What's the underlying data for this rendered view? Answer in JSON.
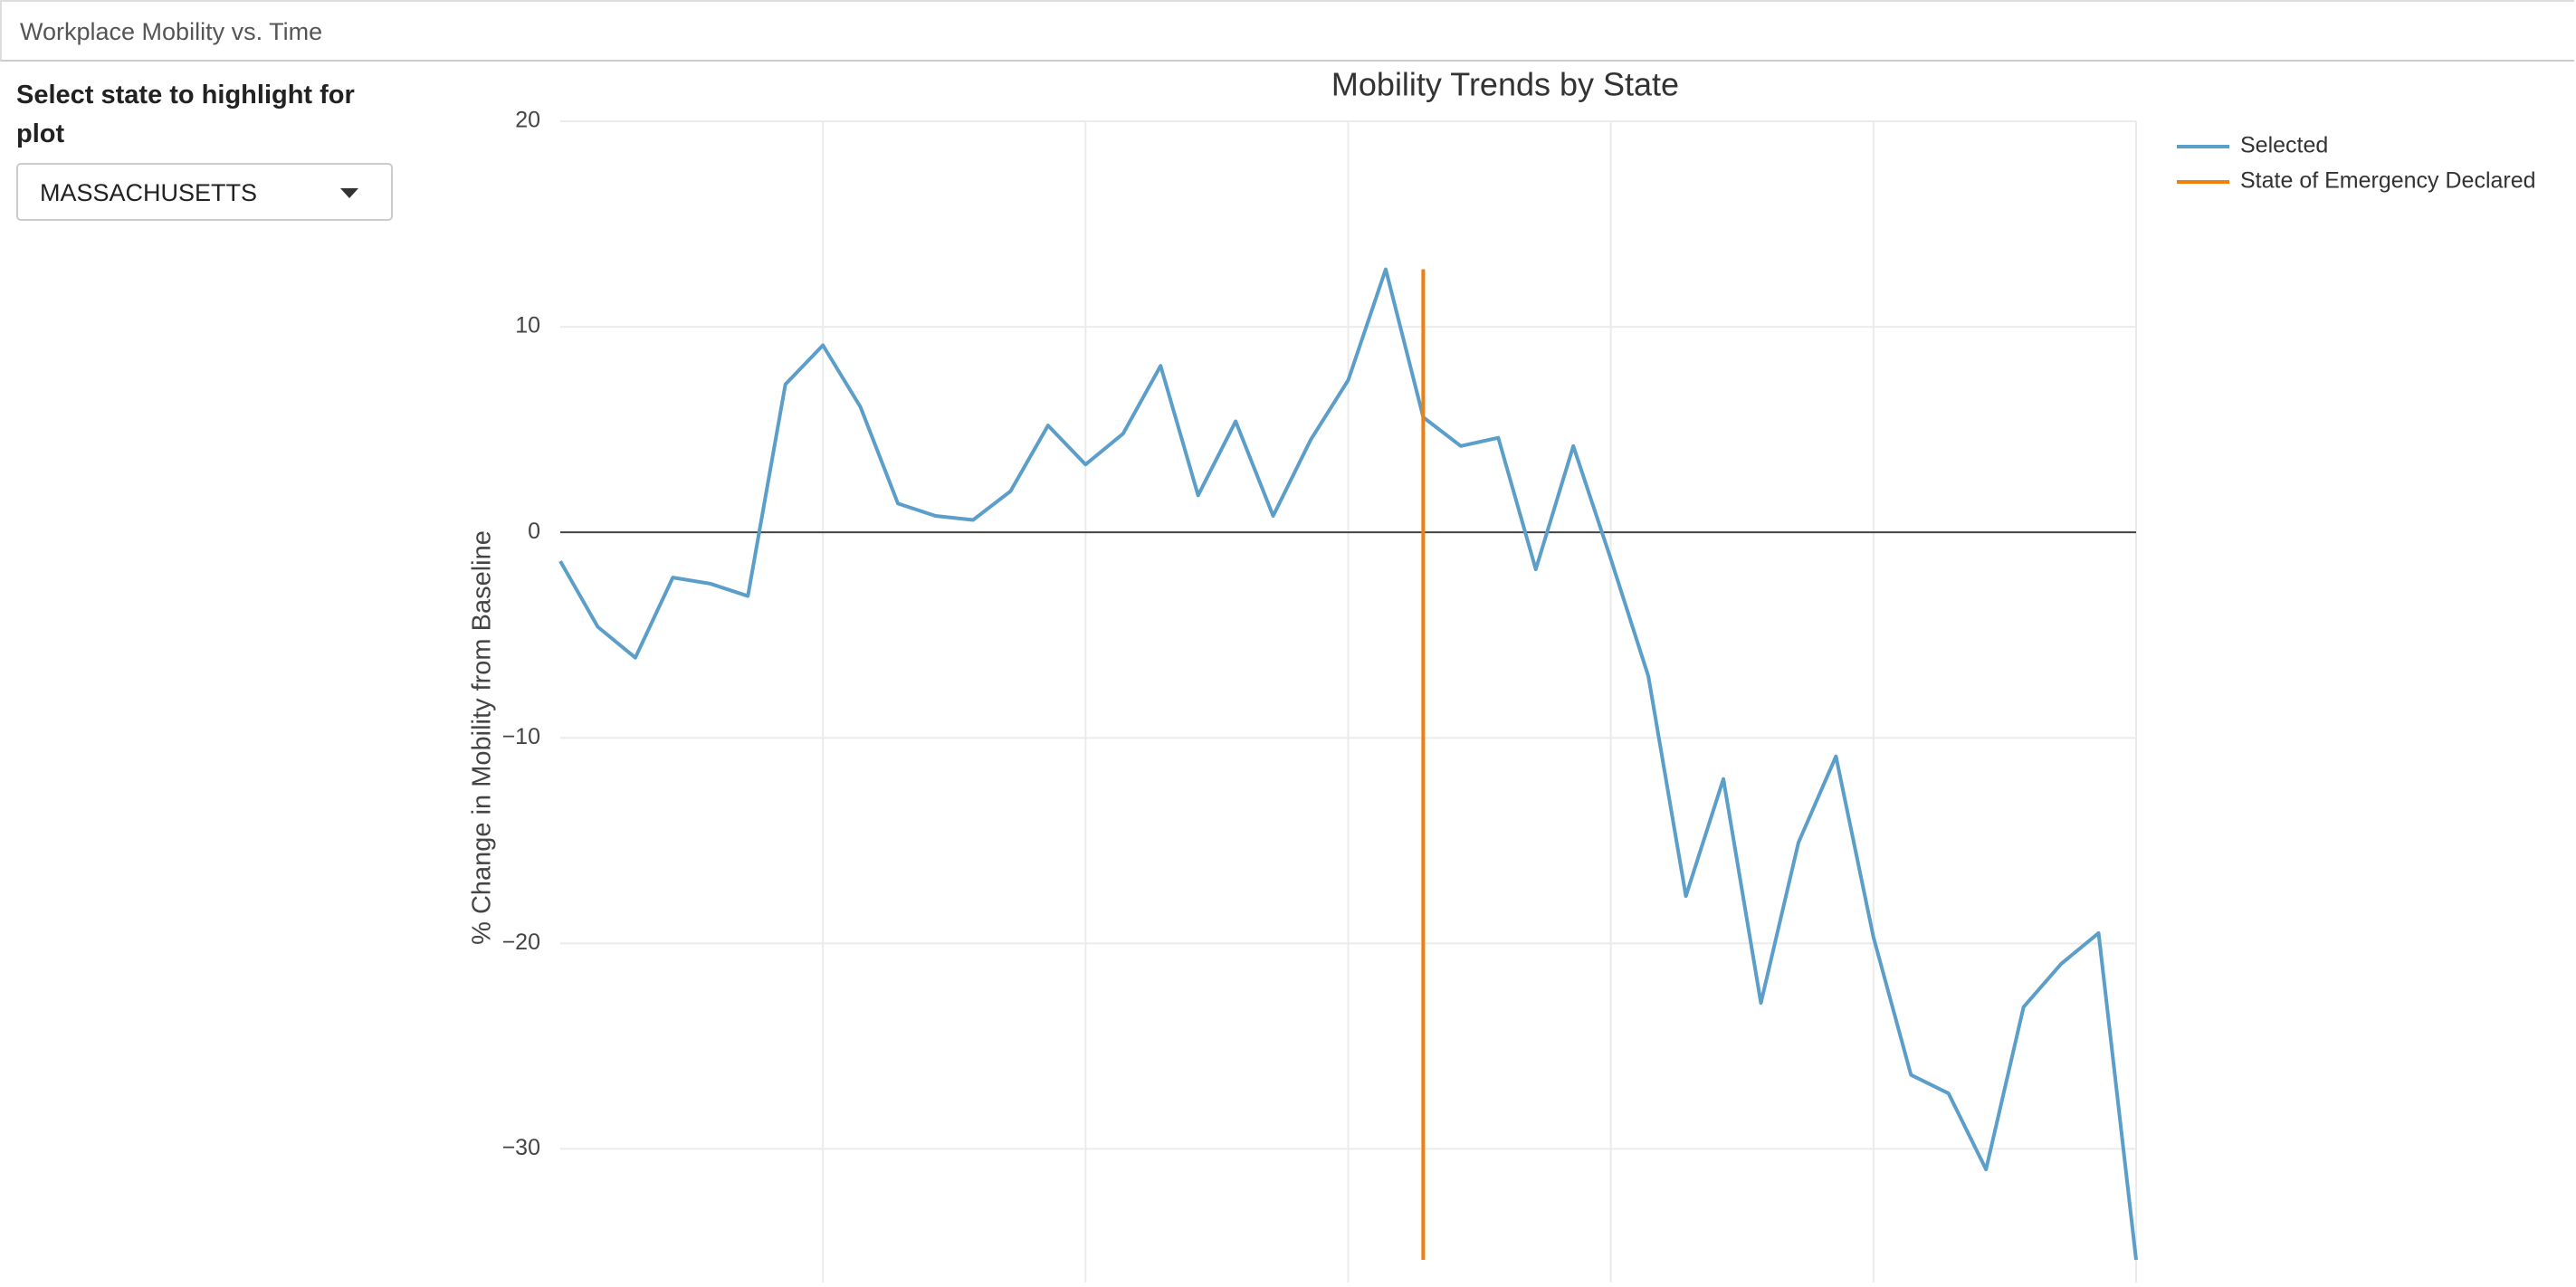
{
  "header": {
    "title": "Workplace Mobility vs. Time"
  },
  "sidebar": {
    "label": "Select state to highlight for plot",
    "selected": "MASSACHUSETTS"
  },
  "chart_data": {
    "type": "line",
    "title": "Mobility Trends by State",
    "y_label": "% Change in Mobility from Baseline",
    "categories": [
      null,
      null,
      null,
      null,
      null,
      null,
      null,
      null,
      null,
      null,
      null,
      null,
      null,
      null,
      null,
      null,
      null,
      null,
      null,
      null,
      null,
      null,
      null,
      null,
      null,
      null,
      null,
      null,
      null,
      null,
      null,
      null,
      null,
      null,
      null,
      null,
      null,
      null,
      null,
      null,
      null,
      null,
      null
    ],
    "series": [
      {
        "name": "Selected",
        "color": "#5a9ec9",
        "values": [
          -1.4,
          -4.6,
          -6.1,
          -2.2,
          -2.5,
          -3.1,
          7.2,
          9.1,
          6.1,
          1.4,
          0.8,
          0.6,
          2.0,
          5.2,
          3.3,
          4.8,
          8.1,
          1.8,
          5.4,
          0.8,
          4.5,
          7.4,
          12.8,
          5.6,
          4.2,
          4.6,
          -1.8,
          4.2,
          -1.3,
          -7.0,
          -17.7,
          -12.0,
          -22.9,
          -15.1,
          -10.9,
          -19.7,
          -26.4,
          -27.3,
          -31.0,
          -23.1,
          -21.0,
          -19.5,
          -35.4
        ]
      },
      {
        "name": "State of Emergency Declared",
        "color": "#f07f0e",
        "x": [
          23,
          23
        ],
        "values": [
          12.8,
          -35.4
        ]
      }
    ],
    "ylim": [
      -36.5,
      20
    ],
    "yticks": [
      {
        "value": -30,
        "label": "−30"
      },
      {
        "value": -20,
        "label": "−20"
      },
      {
        "value": -10,
        "label": "−10"
      },
      0,
      10,
      20
    ],
    "grid": true,
    "zeroline": true,
    "legend": "top right"
  }
}
